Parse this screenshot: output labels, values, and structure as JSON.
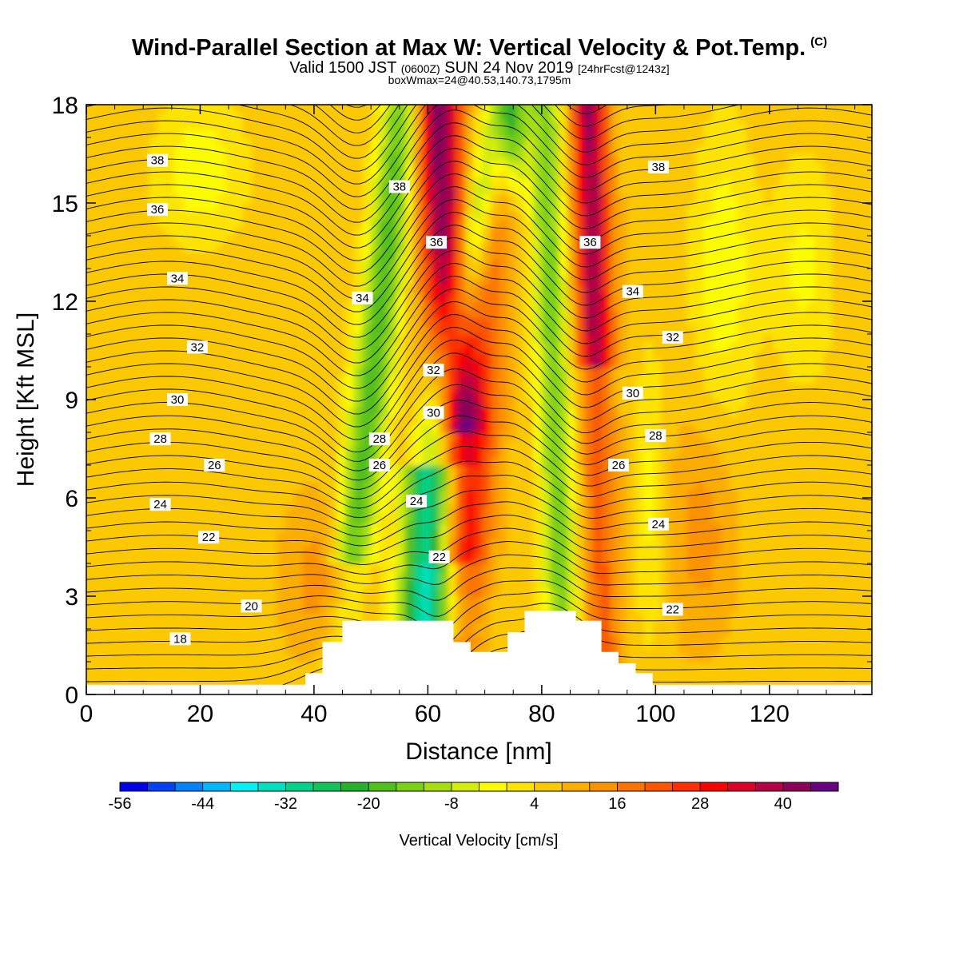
{
  "header": {
    "title": "Wind-Parallel Section at Max W: Vertical Velocity & Pot.Temp.",
    "copyright": "(C)",
    "valid_prefix": "Valid 1500 JST",
    "valid_utc": "(0600Z)",
    "valid_date": "SUN 24 Nov 2019",
    "forecast": "[24hrFcst@1243z]",
    "box_info": "boxWmax=24@40.53,140.73,1795m"
  },
  "chart_data": {
    "type": "heatmap",
    "title": "Wind-Parallel Section at Max W: Vertical Velocity & Pot.Temp.",
    "xlabel": "Distance [nm]",
    "ylabel": "Height [Kft MSL]",
    "xlim": [
      0,
      138
    ],
    "ylim": [
      0,
      18
    ],
    "x_ticks": [
      "0",
      "20",
      "40",
      "60",
      "80",
      "100",
      "120"
    ],
    "y_ticks": [
      "0",
      "3",
      "6",
      "9",
      "12",
      "15",
      "18"
    ],
    "colorbar": {
      "label": "Vertical Velocity [cm/s]",
      "tick_labels": [
        "-56",
        "-44",
        "-32",
        "-20",
        "-8",
        "4",
        "16",
        "28",
        "40"
      ],
      "colors": [
        "#0000e8",
        "#0042f4",
        "#0082f8",
        "#00b8fa",
        "#00f0f4",
        "#00e0c0",
        "#00d28a",
        "#12c25a",
        "#26b02c",
        "#52c01c",
        "#7cd018",
        "#a6de12",
        "#d4ec0c",
        "#fcfc00",
        "#fce400",
        "#fcc800",
        "#fcae00",
        "#fc9200",
        "#fc7400",
        "#fc5400",
        "#fc3000",
        "#fc0000",
        "#dc0028",
        "#b40046",
        "#8c005a",
        "#6a0080"
      ],
      "range": [
        -60,
        48
      ]
    },
    "terrain": [
      [
        0,
        0.3
      ],
      [
        38.5,
        0.3
      ],
      [
        38.5,
        0.65
      ],
      [
        41.5,
        0.65
      ],
      [
        41.5,
        1.6
      ],
      [
        45,
        1.6
      ],
      [
        45,
        2.25
      ],
      [
        64.5,
        2.25
      ],
      [
        64.5,
        1.6
      ],
      [
        67.5,
        1.6
      ],
      [
        67.5,
        1.3
      ],
      [
        74,
        1.3
      ],
      [
        74,
        1.9
      ],
      [
        77,
        1.9
      ],
      [
        77,
        2.55
      ],
      [
        86,
        2.55
      ],
      [
        86,
        2.25
      ],
      [
        90.5,
        2.25
      ],
      [
        90.5,
        1.3
      ],
      [
        93.5,
        1.3
      ],
      [
        93.5,
        0.95
      ],
      [
        96.5,
        0.95
      ],
      [
        96.5,
        0.65
      ],
      [
        99.5,
        0.65
      ],
      [
        99.5,
        0.3
      ],
      [
        138,
        0.3
      ]
    ],
    "theta_levels": [
      "18",
      "20",
      "22",
      "24",
      "26",
      "28",
      "30",
      "32",
      "34",
      "36",
      "38"
    ],
    "theta_labels": [
      {
        "text": "38",
        "x": 12.5,
        "y": 16.3
      },
      {
        "text": "38",
        "x": 55,
        "y": 15.5
      },
      {
        "text": "38",
        "x": 100.5,
        "y": 16.1
      },
      {
        "text": "36",
        "x": 12.5,
        "y": 14.8
      },
      {
        "text": "36",
        "x": 61.5,
        "y": 13.8
      },
      {
        "text": "36",
        "x": 88.5,
        "y": 13.8
      },
      {
        "text": "34",
        "x": 16,
        "y": 12.7
      },
      {
        "text": "34",
        "x": 48.5,
        "y": 12.1
      },
      {
        "text": "34",
        "x": 96,
        "y": 12.3
      },
      {
        "text": "32",
        "x": 19.5,
        "y": 10.6
      },
      {
        "text": "32",
        "x": 61,
        "y": 9.9
      },
      {
        "text": "32",
        "x": 103,
        "y": 10.9
      },
      {
        "text": "30",
        "x": 16,
        "y": 9.0
      },
      {
        "text": "30",
        "x": 61,
        "y": 8.6
      },
      {
        "text": "30",
        "x": 96,
        "y": 9.2
      },
      {
        "text": "28",
        "x": 13,
        "y": 7.8
      },
      {
        "text": "28",
        "x": 51.5,
        "y": 7.8
      },
      {
        "text": "28",
        "x": 100,
        "y": 7.9
      },
      {
        "text": "26",
        "x": 22.5,
        "y": 7.0
      },
      {
        "text": "26",
        "x": 51.5,
        "y": 7.0
      },
      {
        "text": "26",
        "x": 93.5,
        "y": 7.0
      },
      {
        "text": "24",
        "x": 13,
        "y": 5.8
      },
      {
        "text": "24",
        "x": 58,
        "y": 5.9
      },
      {
        "text": "24",
        "x": 100.5,
        "y": 5.2
      },
      {
        "text": "22",
        "x": 21.5,
        "y": 4.8
      },
      {
        "text": "22",
        "x": 62,
        "y": 4.2
      },
      {
        "text": "22",
        "x": 103,
        "y": 2.6
      },
      {
        "text": "20",
        "x": 29,
        "y": 2.7
      },
      {
        "text": "18",
        "x": 16.5,
        "y": 1.7
      }
    ]
  }
}
